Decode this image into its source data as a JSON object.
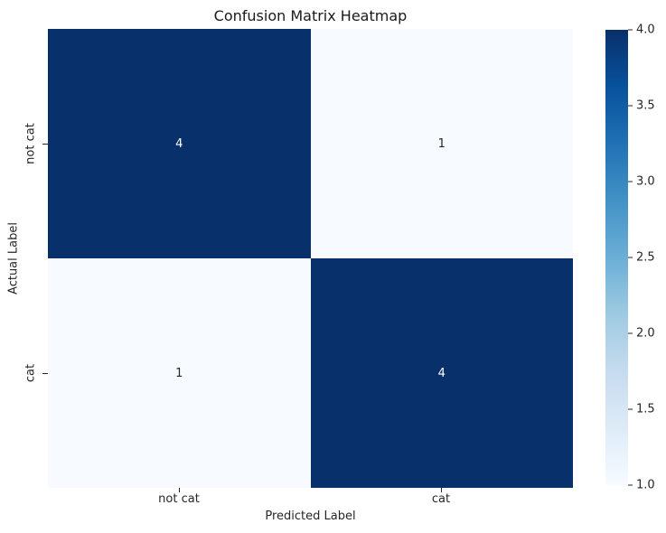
{
  "chart_data": {
    "type": "heatmap",
    "title": "Confusion Matrix Heatmap",
    "xlabel": "Predicted Label",
    "ylabel": "Actual Label",
    "x_categories": [
      "not cat",
      "cat"
    ],
    "y_categories": [
      "not cat",
      "cat"
    ],
    "values": [
      [
        4,
        1
      ],
      [
        1,
        4
      ]
    ],
    "vmin": 1.0,
    "vmax": 4.0,
    "colormap": "Blues",
    "grid": false,
    "legend_position": "right-colorbar",
    "colorbar_tick_labels": [
      "4.0",
      "3.5",
      "3.0",
      "2.5",
      "2.0",
      "1.5",
      "1.0"
    ],
    "cell_colors": {
      "high_bg": "#08306b",
      "high_fg": "#ffffff",
      "low_bg": "#f7fbff",
      "low_fg": "#262626"
    },
    "colormap_stops_top_to_bottom": [
      "#08306b",
      "#08519c",
      "#2171b5",
      "#4292c6",
      "#6baed6",
      "#9ecae1",
      "#c6dbef",
      "#deebf7",
      "#f7fbff"
    ]
  }
}
